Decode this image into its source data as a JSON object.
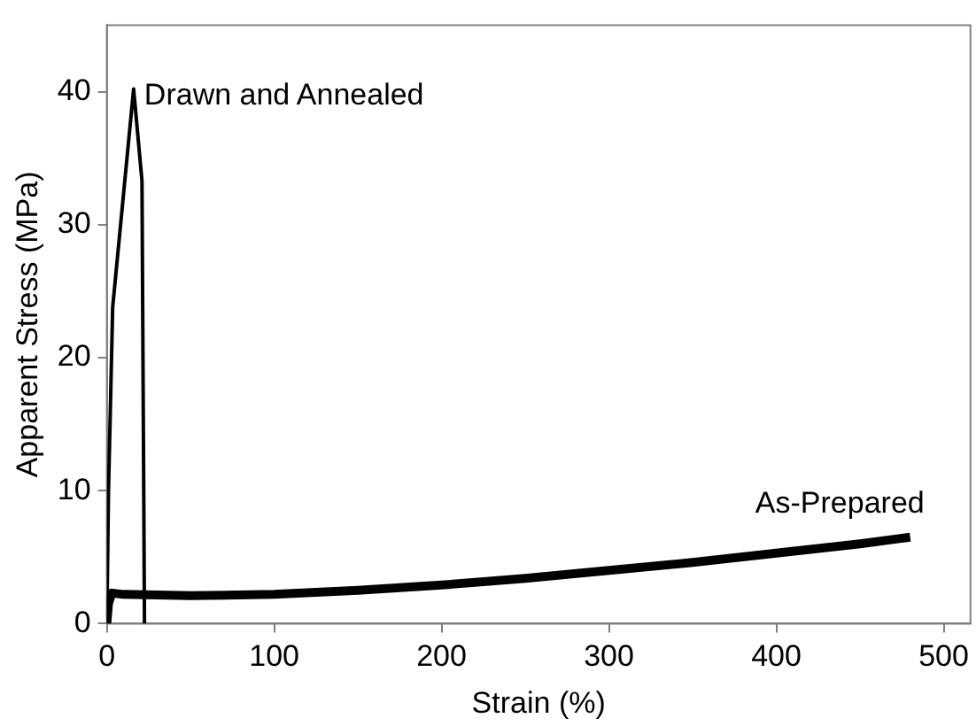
{
  "chart_data": {
    "type": "line",
    "xlabel": "Strain (%)",
    "ylabel": "Apparent Stress (MPa)",
    "xlim": [
      0,
      516
    ],
    "ylim": [
      0,
      45
    ],
    "xticks": [
      0,
      100,
      200,
      300,
      400,
      500
    ],
    "yticks": [
      0,
      10,
      20,
      30,
      40
    ],
    "grid": false,
    "legend": false,
    "marker": "none",
    "line_style": "solid",
    "series": [
      {
        "name": "Drawn and Annealed",
        "color": "#000000",
        "x": [
          0,
          1,
          3.5,
          16,
          21,
          22.5
        ],
        "values": [
          0,
          10,
          23.8,
          40.2,
          33.3,
          0
        ]
      },
      {
        "name": "As-Prepared",
        "color": "#000000",
        "x": [
          0,
          1,
          3,
          10,
          50,
          100,
          150,
          200,
          250,
          300,
          350,
          400,
          450,
          480
        ],
        "values": [
          0,
          1.5,
          2.3,
          2.2,
          2.1,
          2.2,
          2.5,
          2.9,
          3.4,
          4.0,
          4.6,
          5.3,
          6.0,
          6.5
        ]
      }
    ]
  }
}
